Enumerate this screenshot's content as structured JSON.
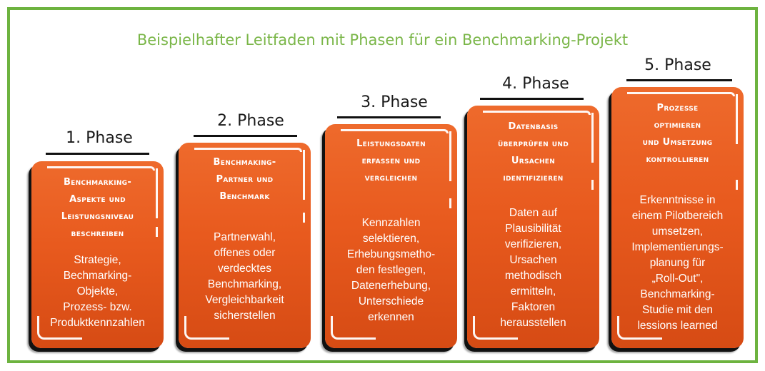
{
  "title": "Beispielhafter Leitfaden mit Phasen für ein Benchmarking-Projekt",
  "phases": [
    {
      "label": "1. Phase",
      "heading": "Benchmarking-\nAspekte und\nLeistungsniveau\nbeschreiben",
      "body": "Strategie,\nBechmarking-\nObjekte,\nProzess- bzw.\nProduktkennzahlen"
    },
    {
      "label": "2. Phase",
      "heading": "Benchmaking-\nPartner und\nBenchmark",
      "body": "Partnerwahl,\noffenes oder\nverdecktes\nBenchmarking,\nVergleichbarkeit\nsicherstellen"
    },
    {
      "label": "3. Phase",
      "heading": "Leistungsdaten\nerfassen und\nvergleichen",
      "body": "Kennzahlen\nselektieren,\nErhebungsmetho-\nden festlegen,\nDatenerhebung,\nUnterschiede\nerkennen"
    },
    {
      "label": "4. Phase",
      "heading": "Datenbasis\nüberprüfen und\nUrsachen\nidentifizieren",
      "body": "Daten auf\nPlausibilität\nverifizieren,\nUrsachen\nmethodisch\nermitteln,\nFaktoren\nherausstellen"
    },
    {
      "label": "5. Phase",
      "heading": "Prozesse\noptimieren\nund Umsetzung\nkontrollieren",
      "body": "Erkenntnisse in\neinem Pilotbereich\numsetzen,\nImplementierungs-\nplanung für\n„Roll-Out\",\nBenchmarking-\nStudie mit den\nlessions learned"
    }
  ]
}
